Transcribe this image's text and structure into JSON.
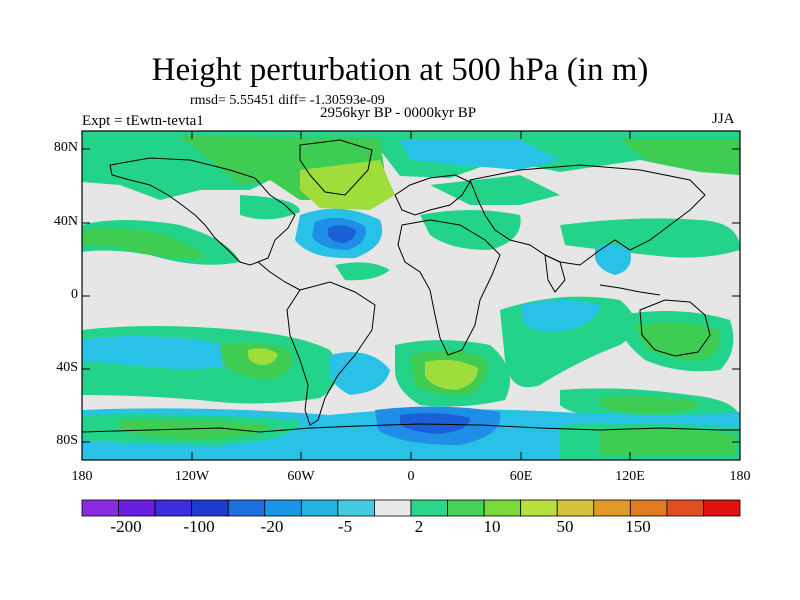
{
  "title": "Height perturbation at 500 hPa (in m)",
  "stats": "rmsd= 5.55451 diff= -1.30593e-09",
  "period": "2956kyr BP - 0000kyr BP",
  "experiment": "Expt = tEwtn-tevta1",
  "season": "JJA",
  "lat_labels": [
    "80N",
    "40N",
    "0",
    "40S",
    "80S"
  ],
  "lon_labels": [
    "180",
    "120W",
    "60W",
    "0",
    "60E",
    "120E",
    "180"
  ],
  "colorbar": {
    "labels": [
      "-200",
      "-100",
      "-20",
      "-5",
      "2",
      "10",
      "50",
      "150"
    ],
    "colors": [
      "#8a2be2",
      "#6a1ee0",
      "#3d2ce0",
      "#1f3ccf",
      "#1d6fe0",
      "#1995e8",
      "#22b3e0",
      "#43cbe2",
      "#e8e8e8",
      "#2ad68a",
      "#47d15a",
      "#7ad93a",
      "#b6e03b",
      "#d7c23b",
      "#e09a2a",
      "#e07b22",
      "#e04d1e",
      "#e01010"
    ]
  },
  "field_colors": {
    "neutral": "#e6e6e6",
    "blue_dark": "#1b5fd6",
    "blue_mid": "#1f8ee6",
    "cyan": "#29c1e6",
    "teal": "#23d38a",
    "green": "#3fcc53",
    "lime": "#9fdd3c",
    "yellow": "#c9d43a"
  }
}
